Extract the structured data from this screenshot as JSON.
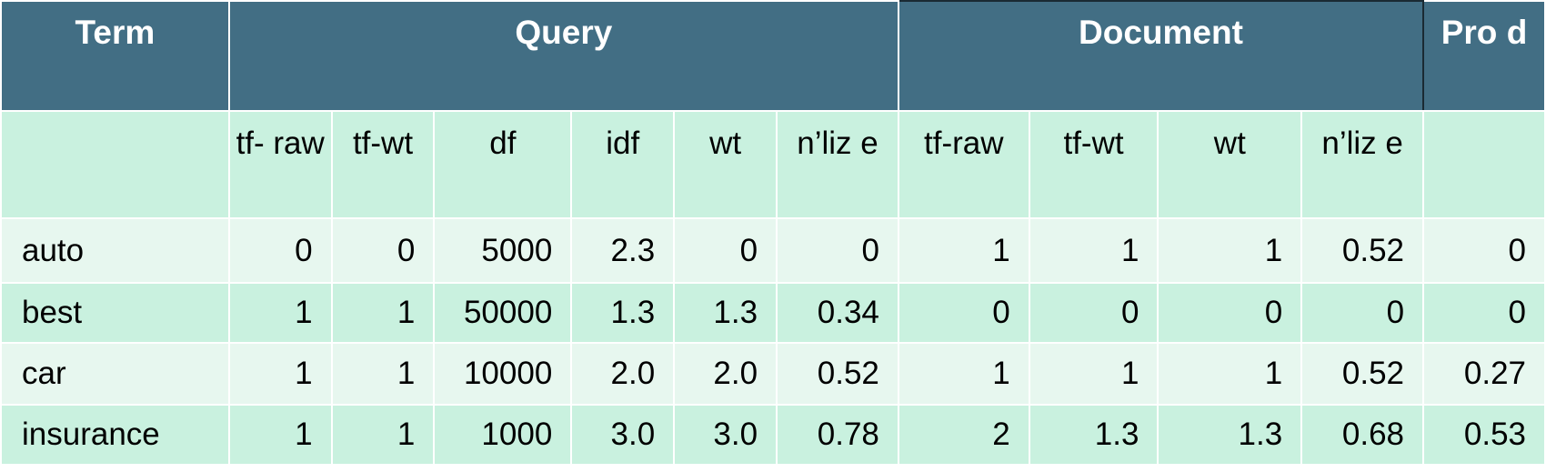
{
  "headers": {
    "term": "Term",
    "query": "Query",
    "document": "Document",
    "prod": "Pro d"
  },
  "subheaders": [
    "",
    "tf- raw",
    "tf-wt",
    "df",
    "idf",
    "wt",
    "n’liz e",
    "tf-raw",
    "tf-wt",
    "wt",
    "n’liz e",
    ""
  ],
  "rows": [
    {
      "term": "auto",
      "values": [
        "0",
        "0",
        "5000",
        "2.3",
        "0",
        "0",
        "1",
        "1",
        "1",
        "0.52",
        "0"
      ]
    },
    {
      "term": "best",
      "values": [
        "1",
        "1",
        "50000",
        "1.3",
        "1.3",
        "0.34",
        "0",
        "0",
        "0",
        "0",
        "0"
      ]
    },
    {
      "term": "car",
      "values": [
        "1",
        "1",
        "10000",
        "2.0",
        "2.0",
        "0.52",
        "1",
        "1",
        "1",
        "0.52",
        "0.27"
      ]
    },
    {
      "term": "insurance",
      "values": [
        "1",
        "1",
        "1000",
        "3.0",
        "3.0",
        "0.78",
        "2",
        "1.3",
        "1.3",
        "0.68",
        "0.53"
      ]
    }
  ],
  "colors": {
    "header_bg": "#426e84",
    "subheader_bg": "#c9f1df",
    "row_light": "#e7f7ef",
    "row_dark": "#c9f1df"
  }
}
